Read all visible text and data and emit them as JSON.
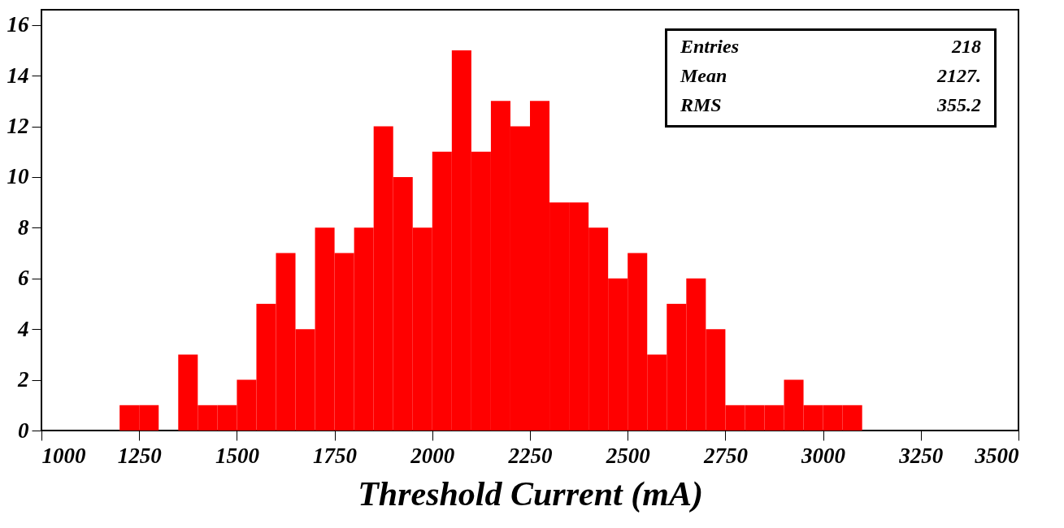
{
  "chart_data": {
    "type": "histogram",
    "xlabel": "Threshold Current (mA)",
    "bins": [
      1200,
      1250,
      1300,
      1350,
      1400,
      1450,
      1500,
      1550,
      1600,
      1650,
      1700,
      1750,
      1800,
      1850,
      1900,
      1950,
      2000,
      2050,
      2100,
      2150,
      2200,
      2250,
      2300,
      2350,
      2400,
      2450,
      2500,
      2550,
      2600,
      2650,
      2700,
      2750,
      2800,
      2850,
      2900,
      2950,
      3000,
      3050,
      3100
    ],
    "values": [
      1,
      1,
      0,
      3,
      1,
      1,
      2,
      5,
      7,
      4,
      8,
      7,
      8,
      12,
      10,
      8,
      11,
      15,
      11,
      13,
      12,
      13,
      9,
      9,
      8,
      6,
      7,
      3,
      5,
      6,
      4,
      1,
      1,
      1,
      2,
      1,
      1,
      1
    ],
    "color": "#ff0000",
    "xlim": [
      1000,
      3500
    ],
    "xticks": [
      1000,
      1250,
      1500,
      1750,
      2000,
      2250,
      2500,
      2750,
      3000,
      3250,
      3500
    ],
    "ylim": [
      0,
      16.6
    ],
    "yticks": [
      0,
      2,
      4,
      6,
      8,
      10,
      12,
      14,
      16
    ],
    "grid": false,
    "annotations": [
      "Entries",
      "218",
      "Mean",
      "2127.",
      "RMS",
      "355.2"
    ]
  }
}
